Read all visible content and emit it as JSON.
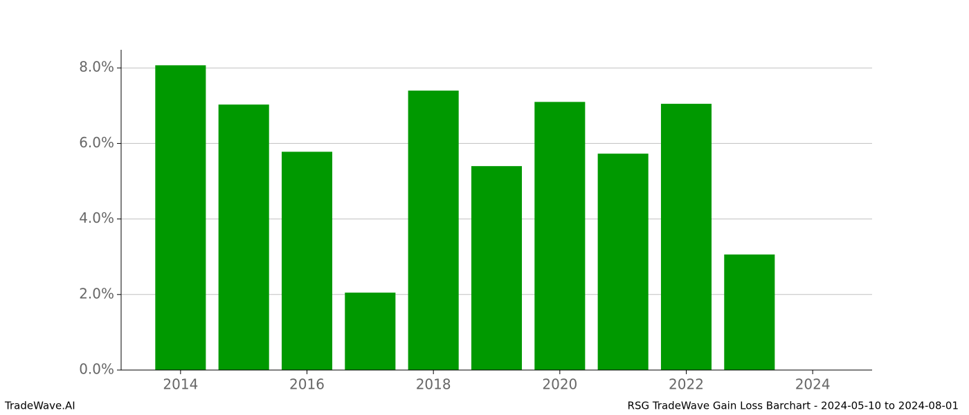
{
  "chart_data": {
    "type": "bar",
    "x": [
      2014,
      2015,
      2016,
      2017,
      2018,
      2019,
      2020,
      2021,
      2022,
      2023,
      2024
    ],
    "values": [
      8.07,
      7.03,
      5.78,
      2.05,
      7.4,
      5.4,
      7.1,
      5.73,
      7.05,
      3.06,
      0
    ],
    "color": "#009900",
    "xlim": [
      2013.06,
      2024.94
    ],
    "xticks": [
      2014,
      2016,
      2018,
      2020,
      2022,
      2024
    ],
    "ylim": [
      0,
      8.48
    ],
    "yticks": [
      {
        "value": 0,
        "label": "0.0%"
      },
      {
        "value": 2,
        "label": "2.0%"
      },
      {
        "value": 4,
        "label": "4.0%"
      },
      {
        "value": 6,
        "label": "6.0%"
      },
      {
        "value": 8,
        "label": "8.0%"
      }
    ],
    "grid": true,
    "watermark": "TradeWave.AI",
    "caption": "RSG TradeWave Gain Loss Barchart - 2024-05-10 to 2024-08-01"
  }
}
